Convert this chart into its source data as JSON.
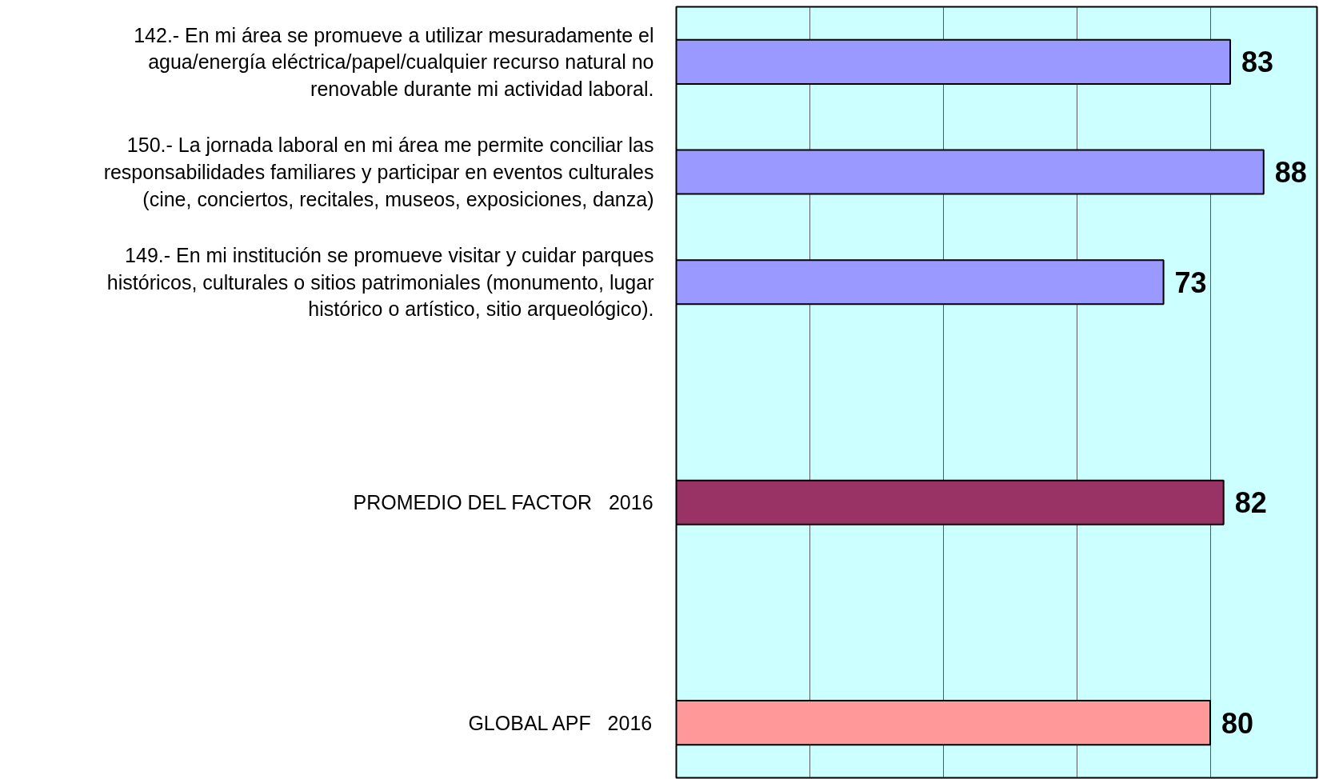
{
  "chart_data": {
    "type": "bar",
    "orientation": "horizontal",
    "categories": [
      "142.- En mi área se promueve a utilizar mesuradamente el agua/energía eléctrica/papel/cualquier recurso natural no renovable durante mi actividad laboral.",
      "150.- La jornada laboral en mi área me permite conciliar las responsabilidades familiares y participar en eventos culturales (cine, conciertos, recitales, museos, exposiciones, danza)",
      "149.- En mi institución se promueve visitar y cuidar parques históricos, culturales o sitios patrimoniales (monumento, lugar histórico o artístico, sitio arqueológico).",
      null,
      "PROMEDIO DEL FACTOR   2016",
      null,
      "GLOBAL APF   2016"
    ],
    "values": [
      83,
      88,
      73,
      null,
      82,
      null,
      80
    ],
    "colors": [
      "#9999ff",
      "#9999ff",
      "#9999ff",
      "#9999ff",
      "#993366",
      "#9999ff",
      "#ff9999"
    ],
    "data_labels": true,
    "xlim": [
      0,
      96
    ],
    "xticks": [
      {
        "value": 0,
        "label": null
      },
      {
        "value": 20,
        "label": null
      },
      {
        "value": 40,
        "label": null
      },
      {
        "value": 60,
        "label": null
      },
      {
        "value": 80,
        "label": null
      }
    ],
    "tick_labels": "y",
    "grid": "x"
  }
}
